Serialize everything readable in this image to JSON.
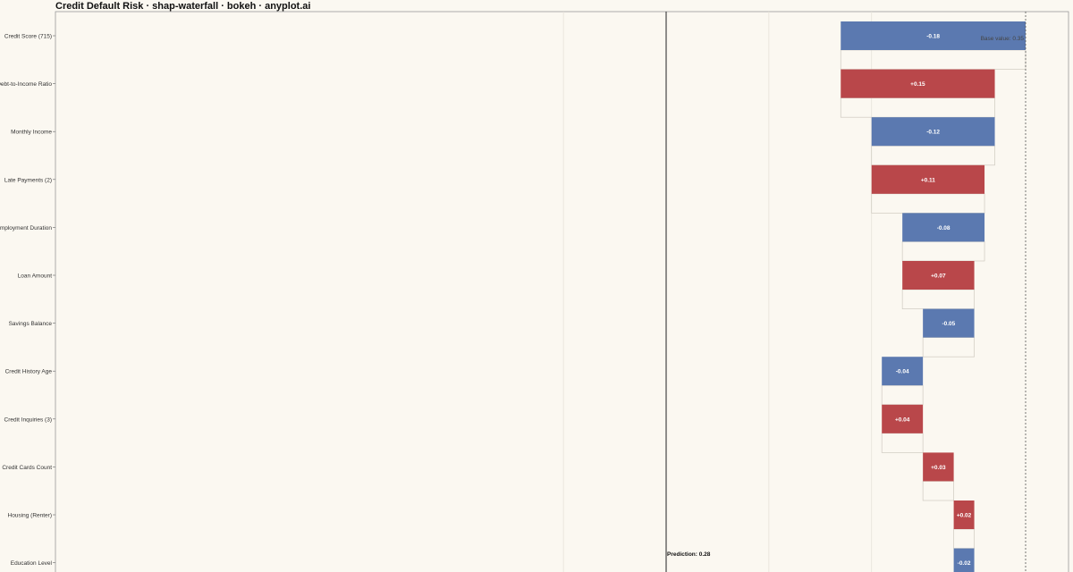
{
  "chart_data": {
    "type": "bar",
    "title": "Credit Default Risk · shap-waterfall · bokeh · anyplot.ai",
    "base_value": 0.35,
    "base_label": "Base value: 0.35",
    "prediction": 0.28,
    "prediction_label": "Prediction: 0.28",
    "colors": {
      "positive": "#B9474A",
      "negative": "#5B79B0",
      "background": "#FBF8F1"
    },
    "x_range": [
      -0.18,
      0.37
    ],
    "features": [
      {
        "name": "Credit Score (715)",
        "value": -0.18,
        "label": "-0.18"
      },
      {
        "name": "Debt-to-Income Ratio",
        "value": 0.15,
        "label": "+0.15"
      },
      {
        "name": "Monthly Income",
        "value": -0.12,
        "label": "-0.12"
      },
      {
        "name": "Late Payments (2)",
        "value": 0.11,
        "label": "+0.11"
      },
      {
        "name": "Employment Duration",
        "value": -0.08,
        "label": "-0.08"
      },
      {
        "name": "Loan Amount",
        "value": 0.07,
        "label": "+0.07"
      },
      {
        "name": "Savings Balance",
        "value": -0.05,
        "label": "-0.05"
      },
      {
        "name": "Credit History Age",
        "value": -0.04,
        "label": "-0.04"
      },
      {
        "name": "Credit Inquiries (3)",
        "value": 0.04,
        "label": "+0.04"
      },
      {
        "name": "Credit Cards Count",
        "value": 0.03,
        "label": "+0.03"
      },
      {
        "name": "Housing (Renter)",
        "value": 0.02,
        "label": "+0.02"
      },
      {
        "name": "Education Level",
        "value": -0.02,
        "label": "-0.02"
      }
    ]
  }
}
